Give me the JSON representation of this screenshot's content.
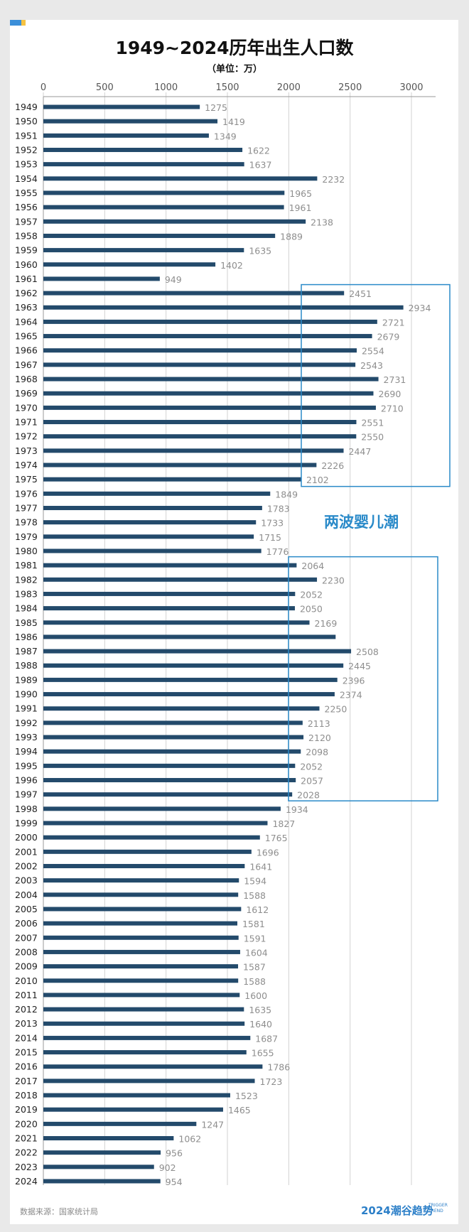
{
  "title": "1949~2024历年出生人口数",
  "subtitle": "（单位：万）",
  "source": "数据来源：国家统计局",
  "brand": "2024潮谷趋势",
  "brand_sub": "TRIGGER TREND",
  "colors": {
    "bar": "#234a6b",
    "label": "#8e8e8e",
    "annotation": "#2a8ac9",
    "grid": "#d2d2d2"
  },
  "chart_data": {
    "type": "bar",
    "orientation": "horizontal",
    "title": "1949~2024历年出生人口数",
    "subtitle": "（单位：万）",
    "xlim": [
      0,
      3200
    ],
    "xticks": [
      0,
      500,
      1000,
      1500,
      2000,
      2500,
      3000
    ],
    "grid": true,
    "categories": [
      "1949",
      "1950",
      "1951",
      "1952",
      "1953",
      "1954",
      "1955",
      "1956",
      "1957",
      "1958",
      "1959",
      "1960",
      "1961",
      "1962",
      "1963",
      "1964",
      "1965",
      "1966",
      "1967",
      "1968",
      "1969",
      "1970",
      "1971",
      "1972",
      "1973",
      "1974",
      "1975",
      "1976",
      "1977",
      "1978",
      "1979",
      "1980",
      "1981",
      "1982",
      "1983",
      "1984",
      "1985",
      "1986",
      "1987",
      "1988",
      "1989",
      "1990",
      "1991",
      "1992",
      "1993",
      "1994",
      "1995",
      "1996",
      "1997",
      "1998",
      "1999",
      "2000",
      "2001",
      "2002",
      "2003",
      "2004",
      "2005",
      "2006",
      "2007",
      "2008",
      "2009",
      "2010",
      "2011",
      "2012",
      "2013",
      "2014",
      "2015",
      "2016",
      "2017",
      "2018",
      "2019",
      "2020",
      "2021",
      "2022",
      "2023",
      "2024"
    ],
    "values": [
      1275,
      1419,
      1349,
      1622,
      1637,
      2232,
      1965,
      1961,
      2138,
      1889,
      1635,
      1402,
      949,
      2451,
      2934,
      2721,
      2679,
      2554,
      2543,
      2731,
      2690,
      2710,
      2551,
      2550,
      2447,
      2226,
      2102,
      1849,
      1783,
      1733,
      1715,
      1776,
      2064,
      2230,
      2052,
      2050,
      2169,
      2382,
      2508,
      2445,
      2396,
      2374,
      2250,
      2113,
      2120,
      2098,
      2052,
      2057,
      2028,
      1934,
      1827,
      1765,
      1696,
      1641,
      1594,
      1588,
      1612,
      1581,
      1591,
      1604,
      1587,
      1588,
      1600,
      1635,
      1640,
      1687,
      1655,
      1786,
      1723,
      1523,
      1465,
      1247,
      1062,
      956,
      902,
      954
    ],
    "value_labels": [
      "1275",
      "1419",
      "1349",
      "1622",
      "1637",
      "2232",
      "1965",
      "1961",
      "2138",
      "1889",
      "1635",
      "1402",
      "949",
      "2451",
      "2934",
      "2721",
      "2679",
      "2554",
      "2543",
      "2731",
      "2690",
      "2710",
      "2551",
      "2550",
      "2447",
      "2226",
      "2102",
      "1849",
      "1783",
      "1733",
      "1715",
      "1776",
      "2064",
      "2230",
      "2052",
      "2050",
      "2169",
      "",
      "2508",
      "2445",
      "2396",
      "2374",
      "2250",
      "2113",
      "2120",
      "2098",
      "2052",
      "2057",
      "2028",
      "1934",
      "1827",
      "1765",
      "1696",
      "1641",
      "1594",
      "1588",
      "1612",
      "1581",
      "1591",
      "1604",
      "1587",
      "1588",
      "1600",
      "1635",
      "1640",
      "1687",
      "1655",
      "1786",
      "1723",
      "1523",
      "1465",
      "1247",
      "1062",
      "956",
      "902",
      "954"
    ],
    "annotations": [
      {
        "text": "两波婴儿潮",
        "from": "1962",
        "to": "1975"
      },
      {
        "from": "1981",
        "to": "1997"
      }
    ]
  }
}
